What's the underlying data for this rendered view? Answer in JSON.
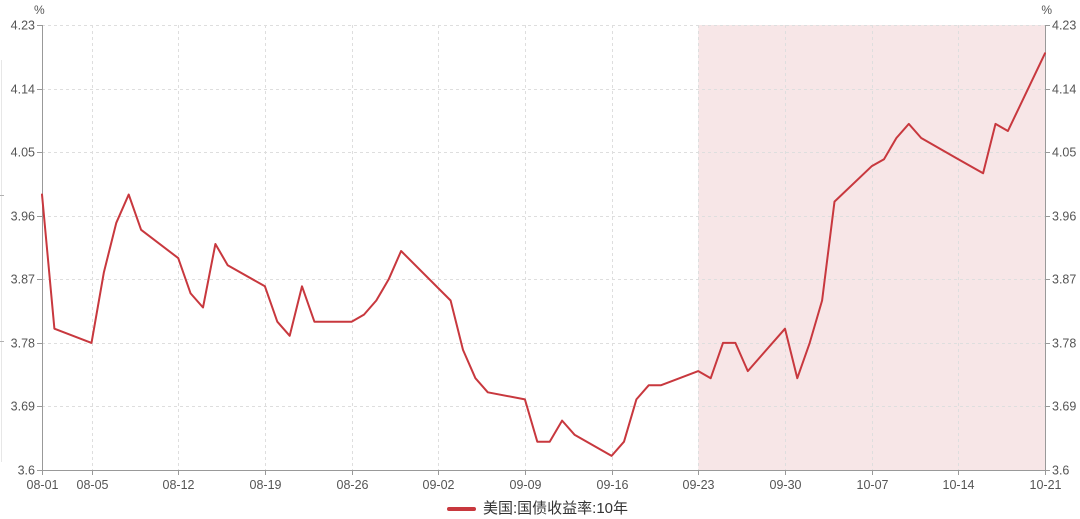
{
  "chart_data": {
    "type": "line",
    "series": [
      {
        "name": "美国:国债收益率:10年",
        "color": "#c8383e",
        "points": [
          [
            "08-01",
            3.99
          ],
          [
            "08-02",
            3.8
          ],
          [
            "08-05",
            3.78
          ],
          [
            "08-06",
            3.88
          ],
          [
            "08-07",
            3.95
          ],
          [
            "08-08",
            3.99
          ],
          [
            "08-09",
            3.94
          ],
          [
            "08-12",
            3.9
          ],
          [
            "08-13",
            3.85
          ],
          [
            "08-14",
            3.83
          ],
          [
            "08-15",
            3.92
          ],
          [
            "08-16",
            3.89
          ],
          [
            "08-19",
            3.86
          ],
          [
            "08-20",
            3.81
          ],
          [
            "08-21",
            3.79
          ],
          [
            "08-22",
            3.86
          ],
          [
            "08-23",
            3.81
          ],
          [
            "08-26",
            3.81
          ],
          [
            "08-27",
            3.82
          ],
          [
            "08-28",
            3.84
          ],
          [
            "08-29",
            3.87
          ],
          [
            "08-30",
            3.91
          ],
          [
            "09-03",
            3.84
          ],
          [
            "09-04",
            3.77
          ],
          [
            "09-05",
            3.73
          ],
          [
            "09-06",
            3.71
          ],
          [
            "09-09",
            3.7
          ],
          [
            "09-10",
            3.64
          ],
          [
            "09-11",
            3.64
          ],
          [
            "09-12",
            3.67
          ],
          [
            "09-13",
            3.65
          ],
          [
            "09-16",
            3.62
          ],
          [
            "09-17",
            3.64
          ],
          [
            "09-18",
            3.7
          ],
          [
            "09-19",
            3.72
          ],
          [
            "09-20",
            3.72
          ],
          [
            "09-23",
            3.74
          ],
          [
            "09-24",
            3.73
          ],
          [
            "09-25",
            3.78
          ],
          [
            "09-26",
            3.78
          ],
          [
            "09-27",
            3.74
          ],
          [
            "09-30",
            3.8
          ],
          [
            "10-01",
            3.73
          ],
          [
            "10-02",
            3.78
          ],
          [
            "10-03",
            3.84
          ],
          [
            "10-04",
            3.98
          ],
          [
            "10-07",
            4.03
          ],
          [
            "10-08",
            4.04
          ],
          [
            "10-09",
            4.07
          ],
          [
            "10-10",
            4.09
          ],
          [
            "10-11",
            4.07
          ],
          [
            "10-14",
            4.04
          ],
          [
            "10-15",
            4.03
          ],
          [
            "10-16",
            4.02
          ],
          [
            "10-17",
            4.09
          ],
          [
            "10-18",
            4.08
          ],
          [
            "10-21",
            4.19
          ]
        ]
      }
    ],
    "x_axis": {
      "start": "08-01",
      "end": "10-21",
      "tick_labels": [
        "08-01",
        "08-05",
        "08-12",
        "08-19",
        "08-26",
        "09-02",
        "09-09",
        "09-16",
        "09-23",
        "09-30",
        "10-07",
        "10-14",
        "10-21"
      ]
    },
    "y_axis": {
      "unit": "%",
      "min": 3.6,
      "max": 4.23,
      "tick_labels": [
        "3.6",
        "3.69",
        "3.78",
        "3.87",
        "3.96",
        "4.05",
        "4.14",
        "4.23"
      ]
    },
    "highlight_region": {
      "from": "09-23",
      "to": "10-21",
      "color": "#f7e6e7"
    },
    "grid": true,
    "legend_position": "bottom-center",
    "colors": {
      "line": "#c8383e",
      "highlight": "#f7e6e7",
      "gridline": "#dedede",
      "axis": "#999999",
      "tick_text": "#555555",
      "legend_text": "#333333"
    }
  }
}
